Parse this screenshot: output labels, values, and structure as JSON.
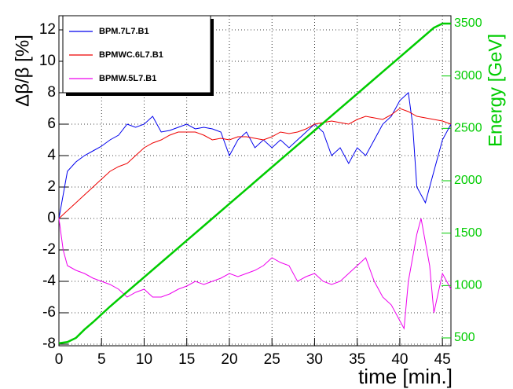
{
  "chart_data": {
    "type": "line",
    "x_label": "time [min.]",
    "y_label": "Δβ/β [%]",
    "y2_label": "Energy [GeV]",
    "xlim": [
      0,
      46
    ],
    "ylim": [
      -8.1,
      12.9
    ],
    "y2lim": [
      425,
      3575
    ],
    "xticks": [
      0,
      5,
      10,
      15,
      20,
      25,
      30,
      35,
      40,
      45
    ],
    "yticks": [
      -8,
      -6,
      -4,
      -2,
      0,
      2,
      4,
      6,
      8,
      10,
      12
    ],
    "y2ticks": [
      500,
      1000,
      1500,
      2000,
      2500,
      3000,
      3500
    ],
    "grid": true,
    "legend": "upper left",
    "y2_color": "#00cc00",
    "series": [
      {
        "name": "BPM.7L7.B1",
        "color": "#0000ee",
        "x": [
          0,
          1,
          2,
          3,
          4,
          5,
          6,
          7,
          8,
          9,
          10,
          11,
          12,
          13,
          14,
          15,
          16,
          17,
          18,
          19,
          20,
          21,
          22,
          23,
          24,
          25,
          26,
          27,
          28,
          29,
          30,
          31,
          32,
          33,
          34,
          35,
          36,
          37,
          38,
          39,
          40,
          41,
          41.5,
          42,
          43,
          44,
          45,
          46
        ],
        "values": [
          0,
          3,
          3.6,
          4,
          4.3,
          4.6,
          5,
          5.3,
          6,
          5.8,
          6,
          6.5,
          5.5,
          5.6,
          5.8,
          6,
          5.7,
          5.8,
          5.7,
          5.5,
          4,
          5,
          5.5,
          4.5,
          5,
          4.5,
          5,
          4.5,
          5,
          5.5,
          6,
          5.5,
          4,
          4.5,
          3.5,
          4.5,
          4,
          5,
          6,
          6.5,
          7.5,
          8,
          6,
          2,
          1,
          3,
          5,
          6
        ]
      },
      {
        "name": "BPMWC.6L7.B1",
        "color": "#ee0000",
        "x": [
          0,
          1,
          2,
          3,
          4,
          5,
          6,
          7,
          8,
          9,
          10,
          11,
          12,
          13,
          14,
          15,
          16,
          17,
          18,
          19,
          20,
          21,
          22,
          23,
          24,
          25,
          26,
          27,
          28,
          29,
          30,
          31,
          32,
          33,
          34,
          35,
          36,
          37,
          38,
          39,
          40,
          41,
          42,
          43,
          44,
          45,
          46
        ],
        "values": [
          0,
          0.5,
          1,
          1.5,
          2,
          2.5,
          3,
          3.3,
          3.5,
          4,
          4.5,
          4.8,
          5,
          5.3,
          5.5,
          5.5,
          5.5,
          5.3,
          5,
          5.1,
          5,
          5.2,
          5.2,
          5.1,
          5,
          5.2,
          5.5,
          5.4,
          5.5,
          5.7,
          6,
          6.1,
          6.2,
          6.1,
          6,
          6.3,
          6.5,
          6.4,
          6.3,
          6.6,
          7,
          6.8,
          6.5,
          6.4,
          6.3,
          6.2,
          6
        ]
      },
      {
        "name": "BPMW.5L7.B1",
        "color": "#ee00ee",
        "x": [
          0,
          0.5,
          1,
          2,
          3,
          4,
          5,
          6,
          7,
          8,
          9,
          10,
          11,
          12,
          13,
          14,
          15,
          16,
          17,
          18,
          19,
          20,
          21,
          22,
          23,
          24,
          25,
          26,
          27,
          28,
          29,
          30,
          31,
          32,
          33,
          34,
          35,
          36,
          37,
          38,
          39,
          40,
          40.5,
          41,
          42,
          42.5,
          43.5,
          44,
          45,
          46
        ],
        "values": [
          0,
          -2,
          -3,
          -3.3,
          -3.5,
          -3.8,
          -4,
          -4.2,
          -4.5,
          -5,
          -4.7,
          -4.5,
          -5,
          -5,
          -4.8,
          -4.5,
          -4.3,
          -4,
          -4.2,
          -4,
          -3.8,
          -3.5,
          -3.7,
          -3.5,
          -3.3,
          -3,
          -2.5,
          -2.8,
          -3,
          -4,
          -3.7,
          -3.5,
          -4,
          -4.2,
          -4,
          -3.5,
          -3,
          -2.5,
          -4,
          -5,
          -5.5,
          -6.5,
          -7,
          -4,
          -1,
          0,
          -3,
          -6,
          -3.5,
          -4.5
        ]
      },
      {
        "name": "Energy",
        "color": "#00cc00",
        "axis": "y2",
        "x": [
          0,
          1,
          2,
          3,
          4,
          6,
          8,
          10,
          12,
          14,
          16,
          18,
          20,
          22,
          24,
          26,
          28,
          30,
          32,
          34,
          36,
          38,
          40,
          42,
          44,
          45,
          46
        ],
        "values": [
          450,
          460,
          500,
          580,
          650,
          800,
          940,
          1080,
          1220,
          1360,
          1500,
          1640,
          1780,
          1920,
          2060,
          2200,
          2340,
          2480,
          2620,
          2760,
          2900,
          3040,
          3180,
          3320,
          3460,
          3500,
          3500
        ]
      }
    ]
  }
}
